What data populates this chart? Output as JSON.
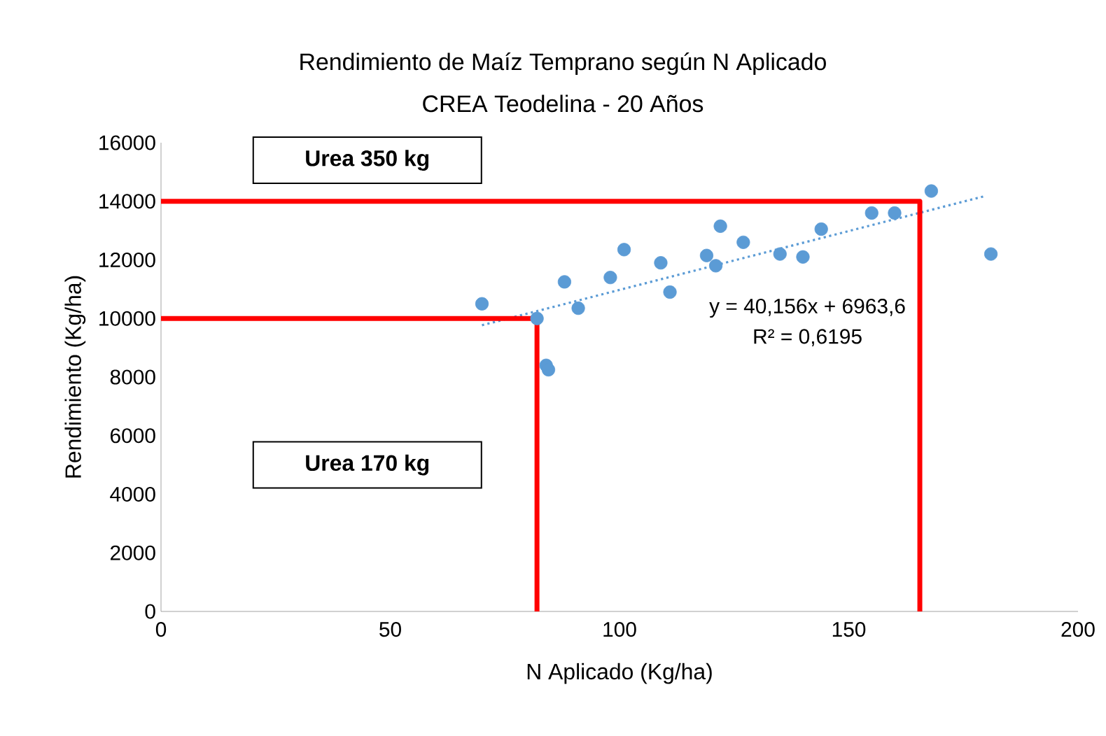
{
  "chart_data": {
    "type": "scatter",
    "title": "Rendimiento de Maíz Temprano según N Aplicado",
    "subtitle": "CREA Teodelina - 20 Años",
    "xlabel": "N Aplicado (Kg/ha)",
    "ylabel": "Rendimiento (Kg/ha)",
    "xlim": [
      0,
      200
    ],
    "xticks": [
      0,
      50,
      100,
      150,
      200
    ],
    "ylim": [
      0,
      16000
    ],
    "yticks": [
      0,
      2000,
      4000,
      6000,
      8000,
      10000,
      12000,
      14000,
      16000
    ],
    "grid": false,
    "series": [
      {
        "type": "scatter",
        "color": "#5b9bd5",
        "marker": "circle",
        "x": [
          70,
          82,
          84,
          84.5,
          88,
          91,
          98,
          101,
          109,
          111,
          119,
          121,
          122,
          127,
          135,
          140,
          144,
          155,
          160,
          168,
          181
        ],
        "values": [
          10500,
          10000,
          8400,
          8250,
          11250,
          10350,
          11400,
          12350,
          11900,
          10900,
          12150,
          11800,
          13150,
          12600,
          12200,
          12100,
          13050,
          13600,
          13600,
          14350,
          12200
        ]
      },
      {
        "type": "line",
        "color": "#5b9bd5",
        "line_style": "dotted",
        "marker": "none",
        "x": [
          70,
          180
        ],
        "values": [
          9770,
          14190
        ]
      },
      {
        "type": "line",
        "color": "#ff0000",
        "line_style": "solid",
        "marker": "none",
        "x": [
          0,
          82,
          82
        ],
        "values": [
          10000,
          10000,
          0
        ]
      },
      {
        "type": "line",
        "color": "#ff0000",
        "line_style": "solid",
        "marker": "none",
        "x": [
          0,
          165.5,
          165.5
        ],
        "values": [
          14000,
          14000,
          0
        ]
      }
    ],
    "annotations": [
      "Urea 350 kg",
      "Urea 170 kg",
      "y = 40,156x + 6963,6",
      "R² = 0,6195"
    ]
  }
}
